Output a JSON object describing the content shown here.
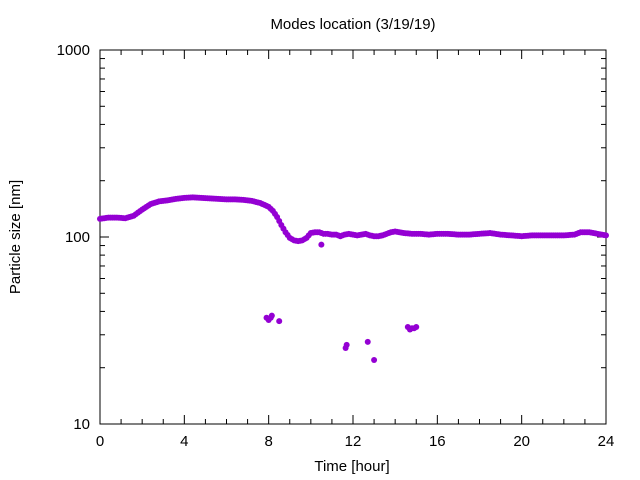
{
  "chart_data": {
    "type": "scatter",
    "title": "Modes location (3/19/19)",
    "xlabel": "Time [hour]",
    "ylabel": "Particle size [nm]",
    "xlim": [
      0,
      24
    ],
    "ylim": [
      10,
      1000
    ],
    "yscale": "log",
    "grid": false,
    "legend": "none",
    "x_ticks": [
      "0",
      "4",
      "8",
      "12",
      "16",
      "20",
      "24"
    ],
    "y_ticks": [
      "10",
      "100",
      "1000"
    ],
    "marker_color": "#9400d3",
    "series": [
      {
        "x": [
          0.0,
          0.4,
          0.8,
          1.2,
          1.6,
          2.0,
          2.4,
          2.8,
          3.2,
          3.6,
          4.0,
          4.4,
          4.8,
          5.2,
          5.6,
          6.0,
          6.4,
          6.8,
          7.2,
          7.6,
          8.0,
          8.2,
          8.4,
          8.6,
          8.8,
          9.0,
          9.2,
          9.4,
          9.6,
          9.8,
          10.0,
          10.2,
          10.4,
          10.6,
          10.8,
          11.0,
          11.2,
          11.4,
          11.6,
          11.8,
          12.0,
          12.2,
          12.4,
          12.6,
          12.8,
          13.0,
          13.2,
          13.4,
          13.6,
          13.8,
          14.0,
          14.4,
          14.8,
          15.2,
          15.6,
          16.0,
          16.5,
          17.0,
          17.5,
          18.0,
          18.5,
          19.0,
          19.5,
          20.0,
          20.5,
          21.0,
          21.5,
          22.0,
          22.5,
          22.8,
          23.2,
          23.6,
          24.0
        ],
        "y": [
          125,
          127,
          127,
          126,
          130,
          140,
          150,
          155,
          157,
          160,
          162,
          163,
          162,
          161,
          160,
          159,
          159,
          158,
          156,
          152,
          145,
          138,
          128,
          116,
          106,
          99,
          96,
          95,
          96,
          99,
          105,
          106,
          106,
          104,
          104,
          103,
          103,
          101,
          103,
          104,
          103,
          102,
          103,
          104,
          102,
          101,
          101,
          102,
          104,
          106,
          107,
          105,
          104,
          104,
          103,
          104,
          104,
          103,
          103,
          104,
          105,
          103,
          102,
          101,
          102,
          102,
          102,
          102,
          103,
          106,
          106,
          104,
          102
        ]
      },
      {
        "x": [
          7.9,
          8.0,
          8.1,
          8.15,
          8.5,
          10.5,
          11.65,
          11.7,
          12.7,
          13.0,
          14.6,
          14.7,
          14.8,
          14.9,
          15.0
        ],
        "y": [
          37,
          36,
          37,
          38,
          35.5,
          91,
          25.5,
          26.5,
          27.5,
          22,
          33,
          32,
          32.5,
          32.5,
          33
        ]
      }
    ]
  }
}
